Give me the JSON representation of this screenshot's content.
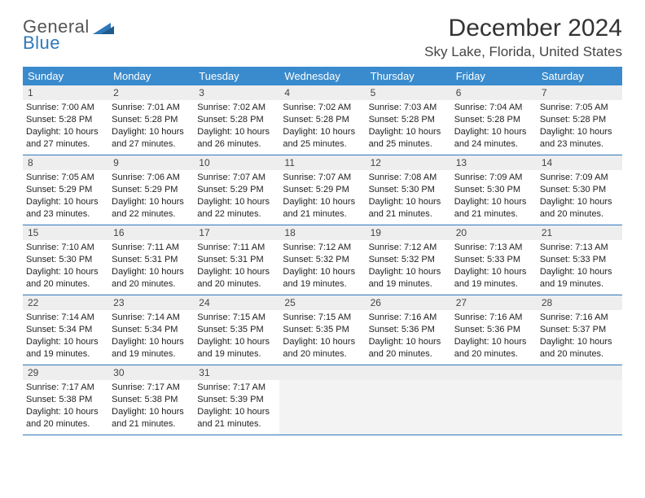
{
  "logo": {
    "general": "General",
    "blue": "Blue"
  },
  "title": "December 2024",
  "location": "Sky Lake, Florida, United States",
  "colors": {
    "header_bg": "#3a8bcd",
    "header_fg": "#ffffff",
    "rule": "#2f78ba",
    "daynum_bg": "#eeeeee",
    "blank_bg": "#f3f3f3",
    "logo_gray": "#555555",
    "logo_blue": "#2f78ba"
  },
  "weekdays": [
    "Sunday",
    "Monday",
    "Tuesday",
    "Wednesday",
    "Thursday",
    "Friday",
    "Saturday"
  ],
  "days": [
    {
      "n": 1,
      "sr": "7:00 AM",
      "ss": "5:28 PM",
      "dh": 10,
      "dm": 27
    },
    {
      "n": 2,
      "sr": "7:01 AM",
      "ss": "5:28 PM",
      "dh": 10,
      "dm": 27
    },
    {
      "n": 3,
      "sr": "7:02 AM",
      "ss": "5:28 PM",
      "dh": 10,
      "dm": 26
    },
    {
      "n": 4,
      "sr": "7:02 AM",
      "ss": "5:28 PM",
      "dh": 10,
      "dm": 25
    },
    {
      "n": 5,
      "sr": "7:03 AM",
      "ss": "5:28 PM",
      "dh": 10,
      "dm": 25
    },
    {
      "n": 6,
      "sr": "7:04 AM",
      "ss": "5:28 PM",
      "dh": 10,
      "dm": 24
    },
    {
      "n": 7,
      "sr": "7:05 AM",
      "ss": "5:28 PM",
      "dh": 10,
      "dm": 23
    },
    {
      "n": 8,
      "sr": "7:05 AM",
      "ss": "5:29 PM",
      "dh": 10,
      "dm": 23
    },
    {
      "n": 9,
      "sr": "7:06 AM",
      "ss": "5:29 PM",
      "dh": 10,
      "dm": 22
    },
    {
      "n": 10,
      "sr": "7:07 AM",
      "ss": "5:29 PM",
      "dh": 10,
      "dm": 22
    },
    {
      "n": 11,
      "sr": "7:07 AM",
      "ss": "5:29 PM",
      "dh": 10,
      "dm": 21
    },
    {
      "n": 12,
      "sr": "7:08 AM",
      "ss": "5:30 PM",
      "dh": 10,
      "dm": 21
    },
    {
      "n": 13,
      "sr": "7:09 AM",
      "ss": "5:30 PM",
      "dh": 10,
      "dm": 21
    },
    {
      "n": 14,
      "sr": "7:09 AM",
      "ss": "5:30 PM",
      "dh": 10,
      "dm": 20
    },
    {
      "n": 15,
      "sr": "7:10 AM",
      "ss": "5:30 PM",
      "dh": 10,
      "dm": 20
    },
    {
      "n": 16,
      "sr": "7:11 AM",
      "ss": "5:31 PM",
      "dh": 10,
      "dm": 20
    },
    {
      "n": 17,
      "sr": "7:11 AM",
      "ss": "5:31 PM",
      "dh": 10,
      "dm": 20
    },
    {
      "n": 18,
      "sr": "7:12 AM",
      "ss": "5:32 PM",
      "dh": 10,
      "dm": 19
    },
    {
      "n": 19,
      "sr": "7:12 AM",
      "ss": "5:32 PM",
      "dh": 10,
      "dm": 19
    },
    {
      "n": 20,
      "sr": "7:13 AM",
      "ss": "5:33 PM",
      "dh": 10,
      "dm": 19
    },
    {
      "n": 21,
      "sr": "7:13 AM",
      "ss": "5:33 PM",
      "dh": 10,
      "dm": 19
    },
    {
      "n": 22,
      "sr": "7:14 AM",
      "ss": "5:34 PM",
      "dh": 10,
      "dm": 19
    },
    {
      "n": 23,
      "sr": "7:14 AM",
      "ss": "5:34 PM",
      "dh": 10,
      "dm": 19
    },
    {
      "n": 24,
      "sr": "7:15 AM",
      "ss": "5:35 PM",
      "dh": 10,
      "dm": 19
    },
    {
      "n": 25,
      "sr": "7:15 AM",
      "ss": "5:35 PM",
      "dh": 10,
      "dm": 20
    },
    {
      "n": 26,
      "sr": "7:16 AM",
      "ss": "5:36 PM",
      "dh": 10,
      "dm": 20
    },
    {
      "n": 27,
      "sr": "7:16 AM",
      "ss": "5:36 PM",
      "dh": 10,
      "dm": 20
    },
    {
      "n": 28,
      "sr": "7:16 AM",
      "ss": "5:37 PM",
      "dh": 10,
      "dm": 20
    },
    {
      "n": 29,
      "sr": "7:17 AM",
      "ss": "5:38 PM",
      "dh": 10,
      "dm": 20
    },
    {
      "n": 30,
      "sr": "7:17 AM",
      "ss": "5:38 PM",
      "dh": 10,
      "dm": 21
    },
    {
      "n": 31,
      "sr": "7:17 AM",
      "ss": "5:39 PM",
      "dh": 10,
      "dm": 21
    }
  ],
  "labels": {
    "sunrise": "Sunrise:",
    "sunset": "Sunset:",
    "daylight_prefix": "Daylight:",
    "hours_word": "hours",
    "and_word": "and",
    "minutes_word": "minutes."
  },
  "grid": {
    "first_weekday_index": 0,
    "total_cells": 35
  }
}
